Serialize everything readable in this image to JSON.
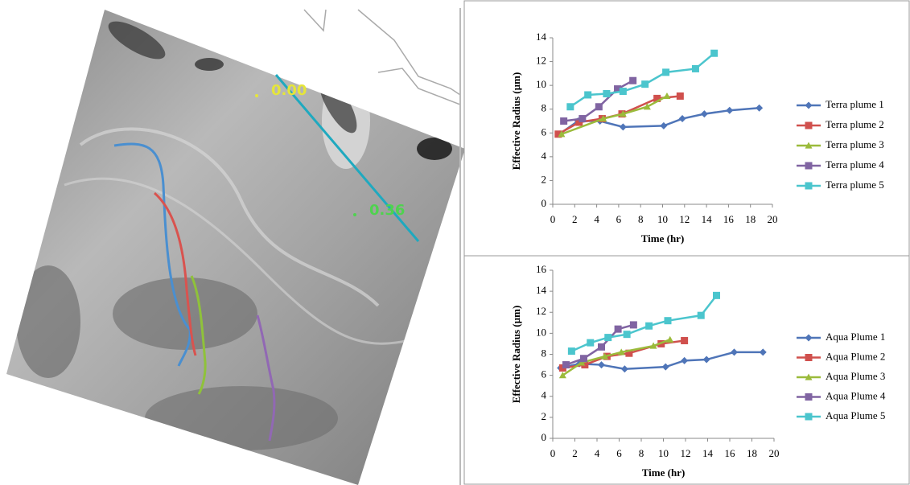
{
  "image": {
    "labels": [
      "0.00",
      "0.36"
    ]
  },
  "chart_data": [
    {
      "type": "line",
      "y_label": "Effective Radius (µm)",
      "x_label": "Time (hr)",
      "xlim": [
        0,
        20
      ],
      "xticks": [
        0,
        2,
        4,
        6,
        8,
        10,
        12,
        14,
        16,
        18,
        20
      ],
      "ylim": [
        0,
        14
      ],
      "yticks": [
        0,
        2,
        4,
        6,
        8,
        10,
        12,
        14
      ],
      "legend": "right",
      "series": [
        {
          "name": "Terra plume 1",
          "color": "#4f75b8",
          "marker": "diamond",
          "x": [
            0.6,
            2.3,
            4.3,
            6.4,
            10.1,
            11.8,
            13.8,
            16.1,
            18.8
          ],
          "values": [
            5.9,
            7.0,
            7.0,
            6.5,
            6.6,
            7.2,
            7.6,
            7.9,
            8.1
          ]
        },
        {
          "name": "Terra plume 2",
          "color": "#d0504d",
          "marker": "square",
          "x": [
            0.5,
            2.4,
            4.5,
            6.3,
            9.5,
            11.6
          ],
          "values": [
            5.9,
            6.9,
            7.2,
            7.6,
            8.9,
            9.1
          ]
        },
        {
          "name": "Terra plume 3",
          "color": "#9bbb3b",
          "marker": "triangle",
          "x": [
            0.8,
            4.6,
            6.4,
            8.6,
            10.4
          ],
          "values": [
            5.9,
            7.2,
            7.6,
            8.2,
            9.1
          ]
        },
        {
          "name": "Terra plume 4",
          "color": "#8064a2",
          "marker": "square",
          "x": [
            1.0,
            2.7,
            4.2,
            5.9,
            7.3
          ],
          "values": [
            7.0,
            7.2,
            8.2,
            9.7,
            10.4
          ]
        },
        {
          "name": "Terra plume 5",
          "color": "#4bc5cd",
          "marker": "square",
          "x": [
            1.6,
            3.2,
            4.9,
            6.4,
            8.4,
            10.3,
            13.0,
            14.7
          ],
          "values": [
            8.2,
            9.2,
            9.3,
            9.5,
            10.1,
            11.1,
            11.4,
            12.7
          ]
        }
      ]
    },
    {
      "type": "line",
      "y_label": "Effective Radius (µm)",
      "x_label": "Time (hr)",
      "xlim": [
        0,
        20
      ],
      "xticks": [
        0,
        2,
        4,
        6,
        8,
        10,
        12,
        14,
        16,
        18,
        20
      ],
      "ylim": [
        0,
        16
      ],
      "yticks": [
        0,
        2,
        4,
        6,
        8,
        10,
        12,
        14,
        16
      ],
      "legend": "right",
      "series": [
        {
          "name": "Aqua Plume 1",
          "color": "#4f75b8",
          "marker": "diamond",
          "x": [
            0.7,
            2.4,
            4.4,
            6.5,
            10.2,
            11.9,
            13.9,
            16.4,
            19.0
          ],
          "values": [
            6.7,
            7.1,
            7.0,
            6.6,
            6.8,
            7.4,
            7.5,
            8.2,
            8.2
          ]
        },
        {
          "name": "Aqua Plume 2",
          "color": "#d0504d",
          "marker": "square",
          "x": [
            0.9,
            2.9,
            4.9,
            6.9,
            9.8,
            11.9
          ],
          "values": [
            6.7,
            7.0,
            7.8,
            8.1,
            9.0,
            9.3
          ]
        },
        {
          "name": "Aqua Plume 3",
          "color": "#9bbb3b",
          "marker": "triangle",
          "x": [
            0.9,
            2.6,
            4.7,
            6.2,
            9.1,
            10.6
          ],
          "values": [
            6.0,
            7.2,
            7.8,
            8.2,
            8.8,
            9.4
          ]
        },
        {
          "name": "Aqua Plume 4",
          "color": "#8064a2",
          "marker": "square",
          "x": [
            1.2,
            2.8,
            4.4,
            5.9,
            7.3
          ],
          "values": [
            7.0,
            7.6,
            8.7,
            10.4,
            10.8
          ]
        },
        {
          "name": "Aqua Plume 5",
          "color": "#4bc5cd",
          "marker": "square",
          "x": [
            1.7,
            3.4,
            5.0,
            6.7,
            8.7,
            10.4,
            13.4,
            14.8
          ],
          "values": [
            8.3,
            9.1,
            9.6,
            9.9,
            10.7,
            11.2,
            11.7,
            13.6
          ]
        }
      ]
    }
  ]
}
